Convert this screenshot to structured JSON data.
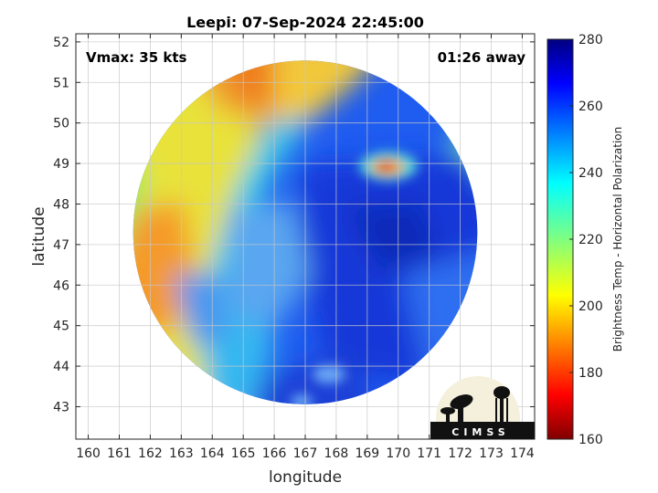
{
  "chart_data": {
    "type": "heatmap",
    "title": "Leepi: 07-Sep-2024 22:45:00",
    "xlabel": "longitude",
    "ylabel": "latitude",
    "xlim": [
      159.6,
      174.4
    ],
    "ylim": [
      42.2,
      52.2
    ],
    "x_ticks": [
      "160",
      "161",
      "162",
      "163",
      "164",
      "165",
      "166",
      "167",
      "168",
      "169",
      "170",
      "171",
      "172",
      "173",
      "174"
    ],
    "y_ticks": [
      "43",
      "44",
      "45",
      "46",
      "47",
      "48",
      "49",
      "50",
      "51",
      "52"
    ],
    "grid": true,
    "colorbar": {
      "label": "Brightness Temp - Horizontal Polarization",
      "min": 160,
      "max": 280,
      "ticks": [
        "160",
        "180",
        "200",
        "220",
        "240",
        "260",
        "280"
      ],
      "colormap": "jet"
    },
    "annotations": {
      "vmax": "Vmax: 35 kts",
      "time_away": "01:26 away"
    },
    "logo": {
      "text": "CIMSS"
    },
    "field": {
      "center_lon": 167.0,
      "center_lat": 47.3,
      "radius_deg": 5.55
    }
  }
}
